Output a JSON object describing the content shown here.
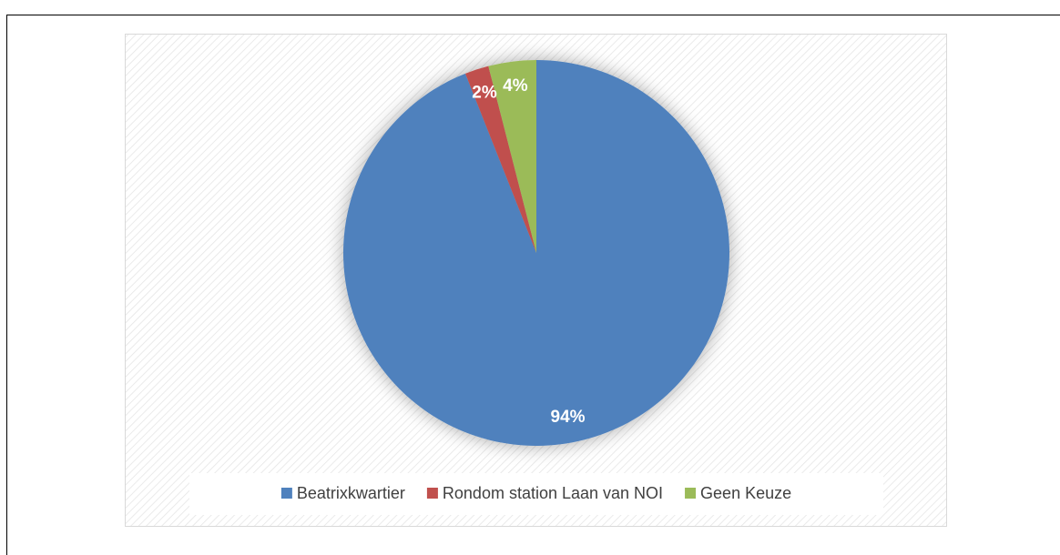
{
  "chart_data": {
    "type": "pie",
    "categories": [
      "Beatrixkwartier",
      "Rondom station Laan van NOI",
      "Geen Keuze"
    ],
    "values": [
      94,
      2,
      4
    ],
    "value_labels": [
      "94%",
      "2%",
      "4%"
    ],
    "colors": [
      "#4f81bd",
      "#c0504d",
      "#9bbb59"
    ],
    "legend": "bottom"
  }
}
